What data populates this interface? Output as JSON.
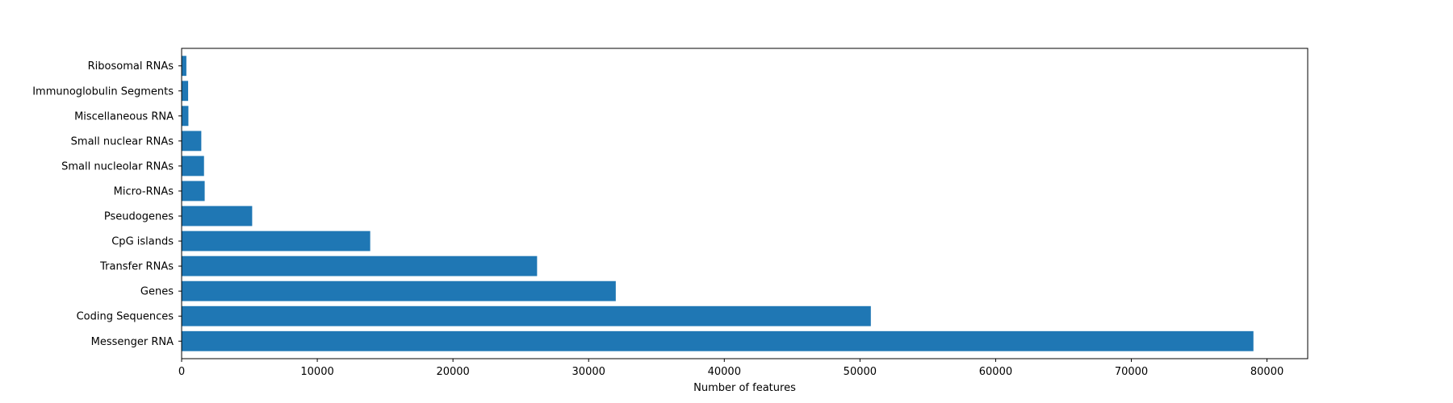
{
  "chart_data": {
    "type": "bar",
    "orientation": "horizontal",
    "categories": [
      "Messenger RNA",
      "Coding Sequences",
      "Genes",
      "Transfer RNAs",
      "CpG islands",
      "Pseudogenes",
      "Micro-RNAs",
      "Small nucleolar RNAs",
      "Small nuclear RNAs",
      "Miscellaneous RNA",
      "Immunoglobulin Segments",
      "Ribosomal RNAs"
    ],
    "values": [
      79000,
      50800,
      32000,
      26200,
      13900,
      5200,
      1700,
      1650,
      1450,
      500,
      480,
      350
    ],
    "title": "",
    "xlabel": "Number of features",
    "ylabel": "",
    "xlim": [
      0,
      83000
    ],
    "xticks": [
      0,
      10000,
      20000,
      30000,
      40000,
      50000,
      60000,
      70000,
      80000
    ],
    "xtick_labels": [
      "0",
      "10000",
      "20000",
      "30000",
      "40000",
      "50000",
      "60000",
      "70000",
      "80000"
    ],
    "grid": false,
    "bar_color": "#1f77b4"
  }
}
